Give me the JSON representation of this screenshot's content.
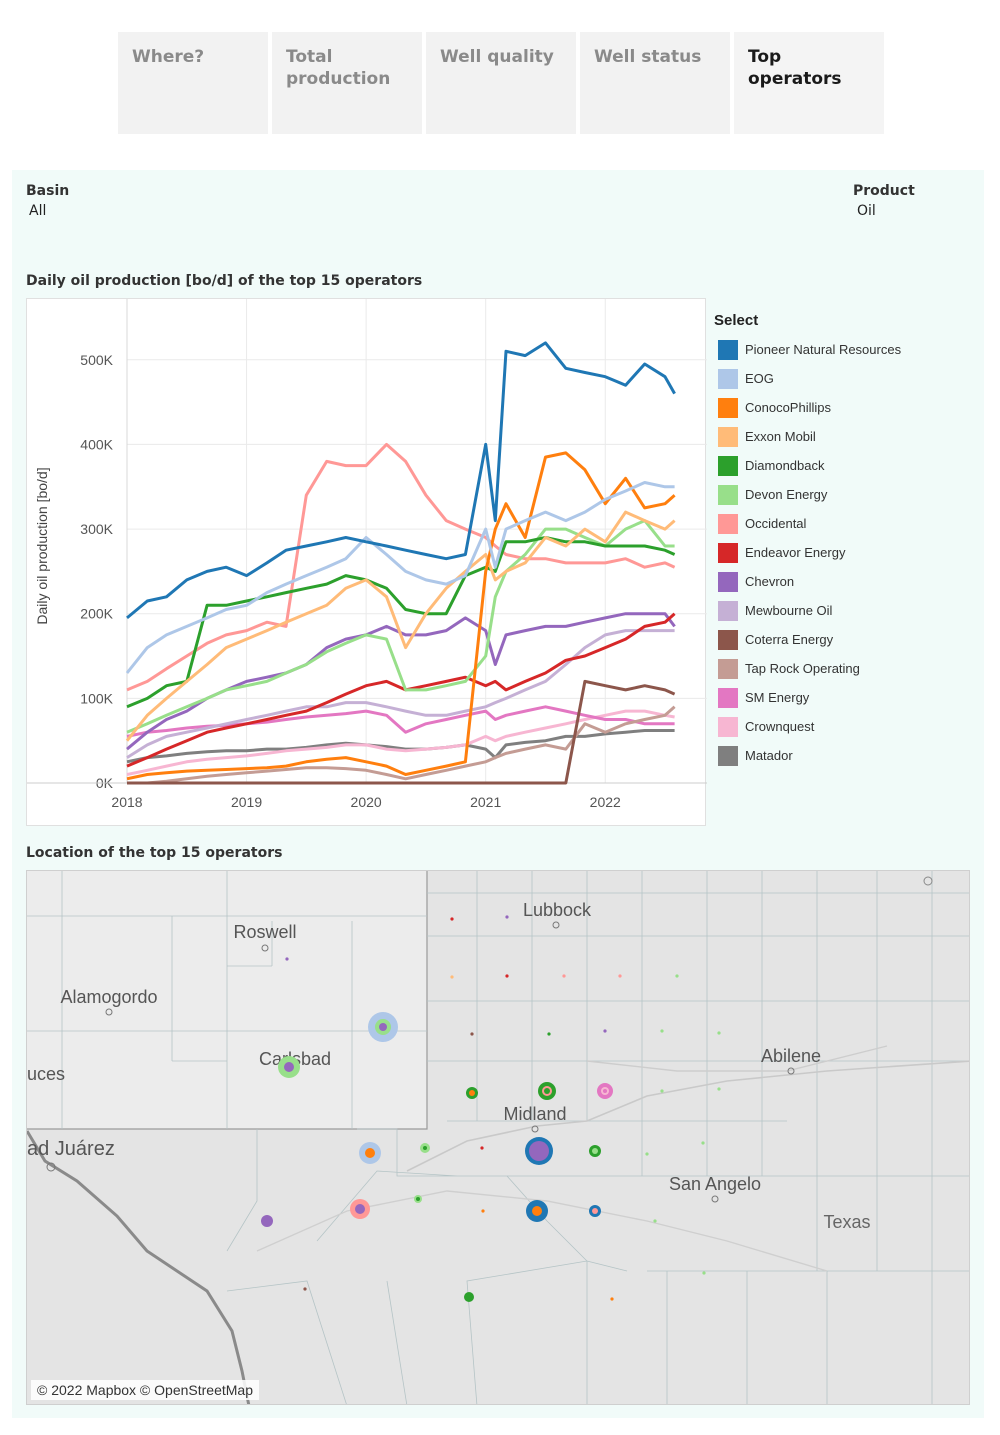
{
  "tabs": [
    {
      "label": "Where?",
      "active": false
    },
    {
      "label": "Total\nproduction",
      "active": false
    },
    {
      "label": "Well quality",
      "active": false
    },
    {
      "label": "Well status",
      "active": false
    },
    {
      "label": "Top\noperators",
      "active": true
    }
  ],
  "filters": {
    "basin": {
      "label": "Basin",
      "value": "All"
    },
    "product": {
      "label": "Product",
      "value": "Oil"
    }
  },
  "chart_title": "Daily oil production [bo/d] of the top 15 operators",
  "map_title": "Location of the top 15 operators",
  "legend": {
    "title": "Select"
  },
  "map": {
    "attribution": "© 2022 Mapbox © OpenStreetMap",
    "places": [
      "Lubbock",
      "Roswell",
      "Alamogordo",
      "Carlsbad",
      "Abilene",
      "Midland",
      "San Angelo",
      "Texas",
      "ad Juárez",
      "uces"
    ]
  },
  "chart_data": {
    "type": "line",
    "ylabel": "Daily oil production [bo/d]",
    "xlabel": "",
    "ylim": [
      0,
      560000
    ],
    "yticks": [
      0,
      100000,
      200000,
      300000,
      400000,
      500000
    ],
    "ytick_labels": [
      "0K",
      "100K",
      "200K",
      "300K",
      "400K",
      "500K"
    ],
    "xticks": [
      2018,
      2019,
      2020,
      2021,
      2022
    ],
    "x": [
      2018.0,
      2018.17,
      2018.33,
      2018.5,
      2018.67,
      2018.83,
      2019.0,
      2019.17,
      2019.33,
      2019.5,
      2019.67,
      2019.83,
      2020.0,
      2020.17,
      2020.33,
      2020.5,
      2020.67,
      2020.83,
      2021.0,
      2021.08,
      2021.17,
      2021.33,
      2021.5,
      2021.67,
      2021.83,
      2022.0,
      2022.17,
      2022.33,
      2022.5,
      2022.58
    ],
    "series": [
      {
        "name": "Pioneer Natural Resources",
        "color": "#1f77b4",
        "values": [
          195000,
          215000,
          220000,
          240000,
          250000,
          255000,
          245000,
          260000,
          275000,
          280000,
          285000,
          290000,
          285000,
          280000,
          275000,
          270000,
          265000,
          270000,
          400000,
          310000,
          510000,
          505000,
          520000,
          490000,
          485000,
          480000,
          470000,
          495000,
          480000,
          460000
        ]
      },
      {
        "name": "EOG",
        "color": "#aec7e8",
        "values": [
          130000,
          160000,
          175000,
          185000,
          195000,
          205000,
          210000,
          225000,
          235000,
          245000,
          255000,
          265000,
          290000,
          270000,
          250000,
          240000,
          235000,
          245000,
          300000,
          255000,
          300000,
          310000,
          320000,
          310000,
          320000,
          335000,
          345000,
          355000,
          350000,
          350000
        ]
      },
      {
        "name": "ConocoPhillips",
        "color": "#ff7f0e",
        "values": [
          5000,
          10000,
          12000,
          14000,
          15000,
          16000,
          17000,
          18000,
          20000,
          25000,
          28000,
          30000,
          25000,
          20000,
          10000,
          15000,
          20000,
          25000,
          250000,
          300000,
          330000,
          290000,
          385000,
          390000,
          370000,
          330000,
          360000,
          325000,
          330000,
          340000
        ]
      },
      {
        "name": "Exxon Mobil",
        "color": "#ffbb78",
        "values": [
          50000,
          80000,
          100000,
          120000,
          140000,
          160000,
          170000,
          180000,
          190000,
          200000,
          210000,
          230000,
          240000,
          220000,
          160000,
          200000,
          230000,
          250000,
          270000,
          240000,
          250000,
          260000,
          290000,
          280000,
          300000,
          285000,
          320000,
          310000,
          300000,
          310000
        ]
      },
      {
        "name": "Diamondback",
        "color": "#2ca02c",
        "values": [
          90000,
          100000,
          115000,
          120000,
          210000,
          210000,
          215000,
          220000,
          225000,
          230000,
          235000,
          245000,
          240000,
          230000,
          205000,
          200000,
          200000,
          245000,
          255000,
          250000,
          285000,
          285000,
          290000,
          285000,
          285000,
          280000,
          280000,
          280000,
          275000,
          270000
        ]
      },
      {
        "name": "Devon Energy",
        "color": "#98df8a",
        "values": [
          60000,
          70000,
          80000,
          90000,
          100000,
          110000,
          115000,
          120000,
          130000,
          140000,
          155000,
          165000,
          175000,
          170000,
          110000,
          110000,
          115000,
          120000,
          150000,
          220000,
          250000,
          270000,
          300000,
          300000,
          290000,
          280000,
          300000,
          310000,
          280000,
          280000
        ]
      },
      {
        "name": "Occidental",
        "color": "#ff9896",
        "values": [
          110000,
          120000,
          135000,
          150000,
          165000,
          175000,
          180000,
          190000,
          185000,
          340000,
          380000,
          375000,
          375000,
          400000,
          380000,
          340000,
          310000,
          300000,
          290000,
          280000,
          270000,
          265000,
          265000,
          260000,
          260000,
          260000,
          265000,
          255000,
          260000,
          255000
        ]
      },
      {
        "name": "Endeavor Energy",
        "color": "#d62728",
        "values": [
          20000,
          30000,
          40000,
          50000,
          60000,
          65000,
          70000,
          75000,
          80000,
          85000,
          95000,
          105000,
          115000,
          120000,
          110000,
          115000,
          120000,
          125000,
          115000,
          120000,
          110000,
          120000,
          130000,
          145000,
          150000,
          160000,
          170000,
          185000,
          190000,
          200000
        ]
      },
      {
        "name": "Chevron",
        "color": "#9467bd",
        "values": [
          40000,
          60000,
          75000,
          85000,
          100000,
          110000,
          120000,
          125000,
          130000,
          140000,
          160000,
          170000,
          175000,
          185000,
          175000,
          175000,
          180000,
          195000,
          180000,
          140000,
          175000,
          180000,
          185000,
          185000,
          190000,
          195000,
          200000,
          200000,
          200000,
          185000
        ]
      },
      {
        "name": "Mewbourne Oil",
        "color": "#c5b0d5",
        "values": [
          30000,
          45000,
          55000,
          60000,
          65000,
          70000,
          75000,
          80000,
          85000,
          90000,
          90000,
          95000,
          95000,
          90000,
          85000,
          80000,
          80000,
          85000,
          90000,
          95000,
          100000,
          110000,
          120000,
          140000,
          160000,
          175000,
          180000,
          180000,
          180000,
          180000
        ]
      },
      {
        "name": "Coterra Energy",
        "color": "#8c564b",
        "values": [
          0,
          0,
          0,
          0,
          0,
          0,
          0,
          0,
          0,
          0,
          0,
          0,
          0,
          0,
          0,
          0,
          0,
          0,
          0,
          0,
          0,
          0,
          0,
          0,
          120000,
          115000,
          110000,
          115000,
          110000,
          105000
        ]
      },
      {
        "name": "Tap Rock Operating",
        "color": "#c49c94",
        "values": [
          0,
          0,
          2000,
          5000,
          8000,
          10000,
          12000,
          14000,
          16000,
          18000,
          18000,
          17000,
          15000,
          10000,
          5000,
          10000,
          15000,
          20000,
          25000,
          30000,
          35000,
          40000,
          45000,
          40000,
          70000,
          60000,
          70000,
          75000,
          80000,
          90000
        ]
      },
      {
        "name": "SM Energy",
        "color": "#e377c2",
        "values": [
          55000,
          60000,
          62000,
          65000,
          67000,
          68000,
          70000,
          72000,
          75000,
          78000,
          80000,
          82000,
          85000,
          80000,
          60000,
          70000,
          75000,
          80000,
          85000,
          75000,
          80000,
          85000,
          90000,
          85000,
          80000,
          75000,
          75000,
          70000,
          70000,
          70000
        ]
      },
      {
        "name": "Crownquest",
        "color": "#f7b6d2",
        "values": [
          10000,
          15000,
          20000,
          25000,
          28000,
          30000,
          32000,
          35000,
          38000,
          40000,
          42000,
          45000,
          45000,
          40000,
          38000,
          40000,
          42000,
          45000,
          55000,
          50000,
          55000,
          60000,
          65000,
          70000,
          75000,
          80000,
          85000,
          85000,
          80000,
          78000
        ]
      },
      {
        "name": "Matador",
        "color": "#7f7f7f",
        "values": [
          25000,
          30000,
          32000,
          35000,
          37000,
          38000,
          38000,
          40000,
          40000,
          42000,
          45000,
          47000,
          45000,
          43000,
          40000,
          40000,
          42000,
          45000,
          40000,
          30000,
          45000,
          48000,
          50000,
          55000,
          55000,
          58000,
          60000,
          62000,
          62000,
          62000
        ]
      }
    ]
  }
}
